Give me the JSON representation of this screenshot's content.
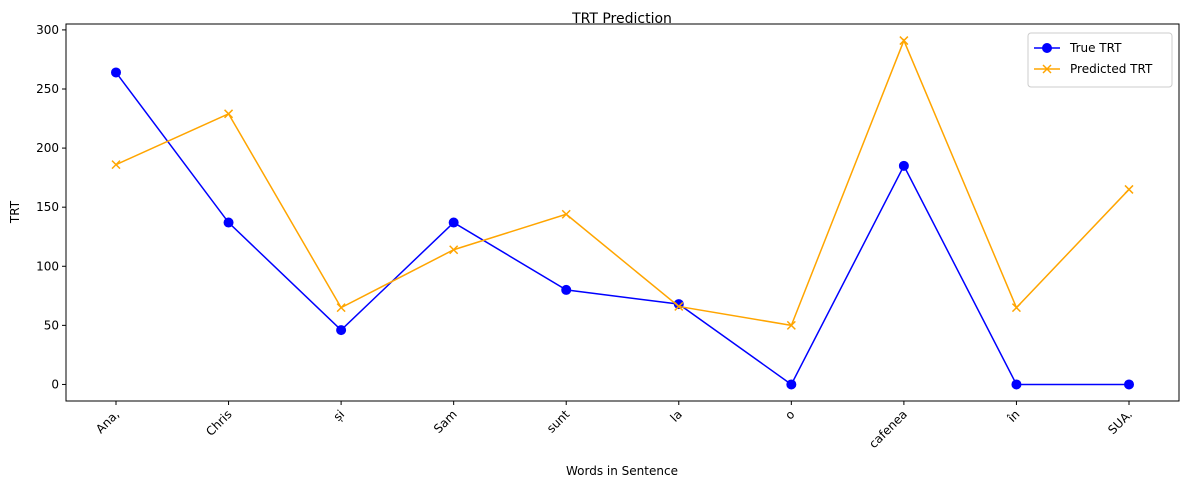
{
  "chart_data": {
    "type": "line",
    "title": "TRT Prediction",
    "xlabel": "Words in Sentence",
    "ylabel": "TRT",
    "categories": [
      "Ana,",
      "Chris",
      "și",
      "Sam",
      "sunt",
      "la",
      "o",
      "cafenea",
      "în",
      "SUA."
    ],
    "ylim": [
      -14,
      305
    ],
    "yticks": [
      0,
      50,
      100,
      150,
      200,
      250,
      300
    ],
    "grid": false,
    "legend_position": "top-right",
    "series": [
      {
        "name": "True TRT",
        "color": "#0000ff",
        "marker": "circle",
        "values": [
          264,
          137,
          46,
          137,
          80,
          68,
          0,
          185,
          0,
          0
        ]
      },
      {
        "name": "Predicted TRT",
        "color": "#ffa500",
        "marker": "x",
        "values": [
          186,
          229,
          65,
          114,
          144,
          66,
          50,
          291,
          65,
          165
        ]
      }
    ]
  }
}
